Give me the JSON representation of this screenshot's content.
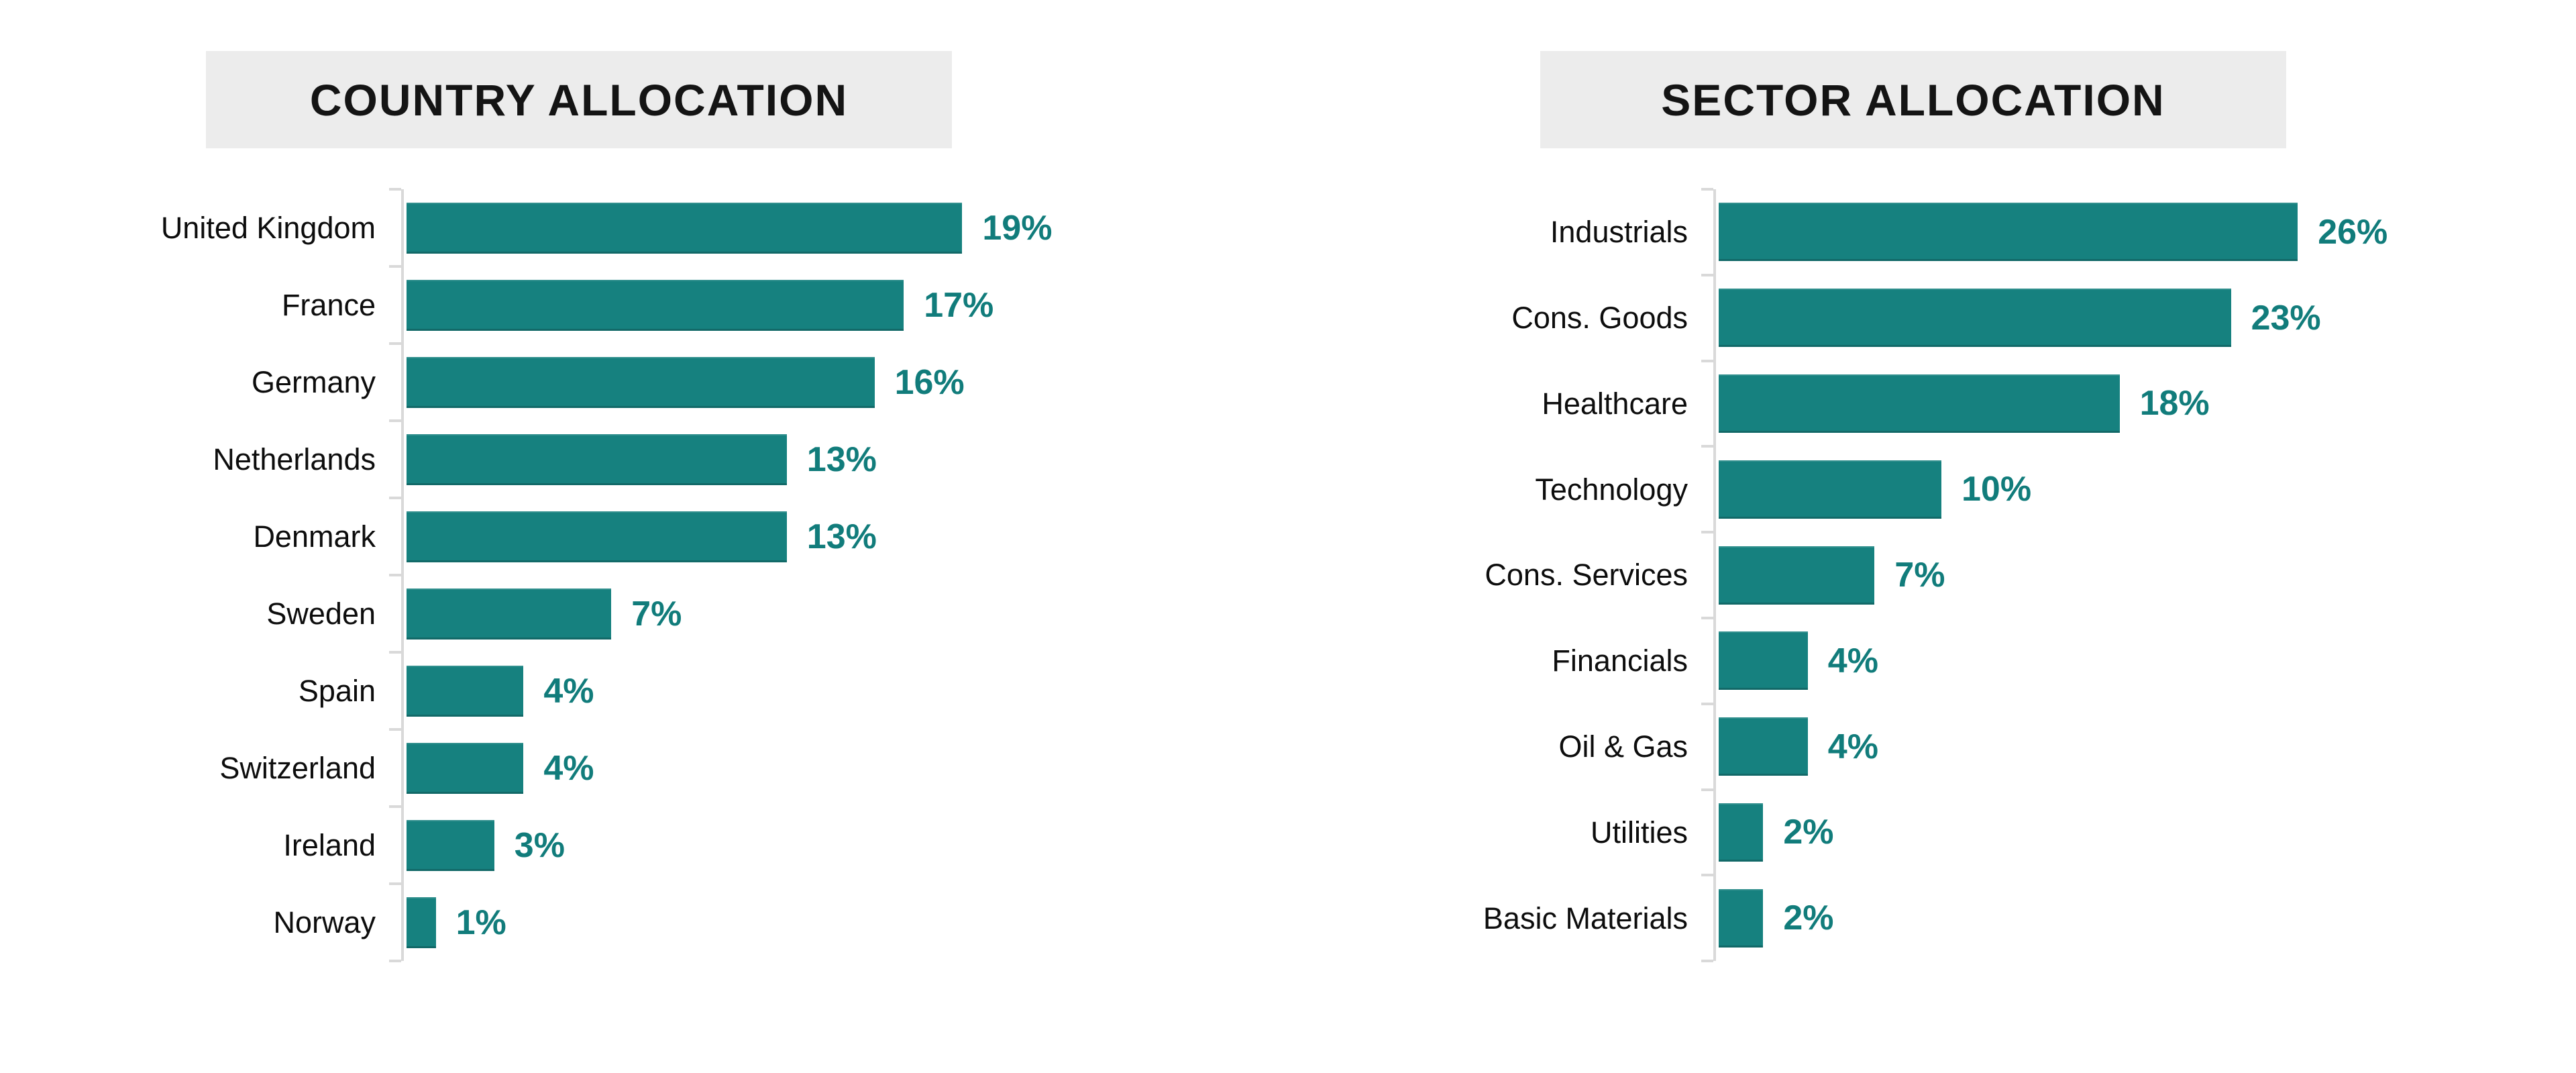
{
  "chart_data": [
    {
      "type": "bar",
      "orientation": "horizontal",
      "title": "COUNTRY ALLOCATION",
      "categories": [
        "United Kingdom",
        "France",
        "Germany",
        "Netherlands",
        "Denmark",
        "Sweden",
        "Spain",
        "Switzerland",
        "Ireland",
        "Norway"
      ],
      "values": [
        19,
        17,
        16,
        13,
        13,
        7,
        4,
        4,
        3,
        1
      ],
      "labels": [
        "19%",
        "17%",
        "16%",
        "13%",
        "13%",
        "7%",
        "4%",
        "4%",
        "3%",
        "1%"
      ],
      "value_suffix": "%",
      "sort": "descending",
      "xlim": [
        0,
        20
      ],
      "grid": false,
      "legend": false,
      "bar_color": "#16817F",
      "value_label_color": "#117C7B",
      "axis_color": "#D9D9D9",
      "title_bg_color": "#ECECEC",
      "category_label_color": "#0D0D0D"
    },
    {
      "type": "bar",
      "orientation": "horizontal",
      "title": "SECTOR ALLOCATION",
      "categories": [
        "Industrials",
        "Cons. Goods",
        "Healthcare",
        "Technology",
        "Cons. Services",
        "Financials",
        "Oil & Gas",
        "Utilities",
        "Basic Materials"
      ],
      "values": [
        26,
        23,
        18,
        10,
        7,
        4,
        4,
        2,
        2
      ],
      "labels": [
        "26%",
        "23%",
        "18%",
        "10%",
        "7%",
        "4%",
        "4%",
        "2%",
        "2%"
      ],
      "value_suffix": "%",
      "sort": "descending",
      "xlim": [
        0,
        30
      ],
      "grid": false,
      "legend": false,
      "bar_color": "#16817F",
      "value_label_color": "#117C7B",
      "axis_color": "#D9D9D9",
      "title_bg_color": "#ECECEC",
      "category_label_color": "#0D0D0D"
    }
  ]
}
